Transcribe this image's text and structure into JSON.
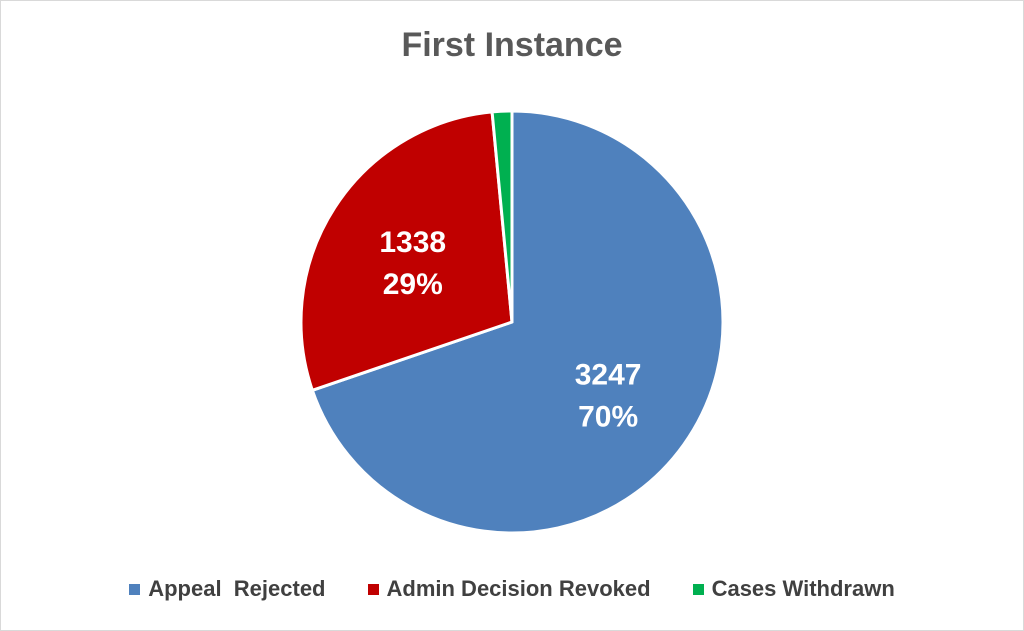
{
  "chart_data": {
    "type": "pie",
    "title": "First Instance",
    "slices": [
      {
        "name": "Appeal  Rejected",
        "value": 3247,
        "percent_label": "70%",
        "color": "#4f81bd"
      },
      {
        "name": "Admin Decision Revoked",
        "value": 1338,
        "percent_label": "29%",
        "color": "#c00000"
      },
      {
        "name": "Cases Withdrawn",
        "value": 70,
        "percent_label": "",
        "color": "#00b050"
      }
    ],
    "legend_position": "bottom",
    "data_labels": [
      {
        "value_text": "3247",
        "percent_text": "70%"
      },
      {
        "value_text": "1338",
        "percent_text": "29%"
      }
    ]
  }
}
